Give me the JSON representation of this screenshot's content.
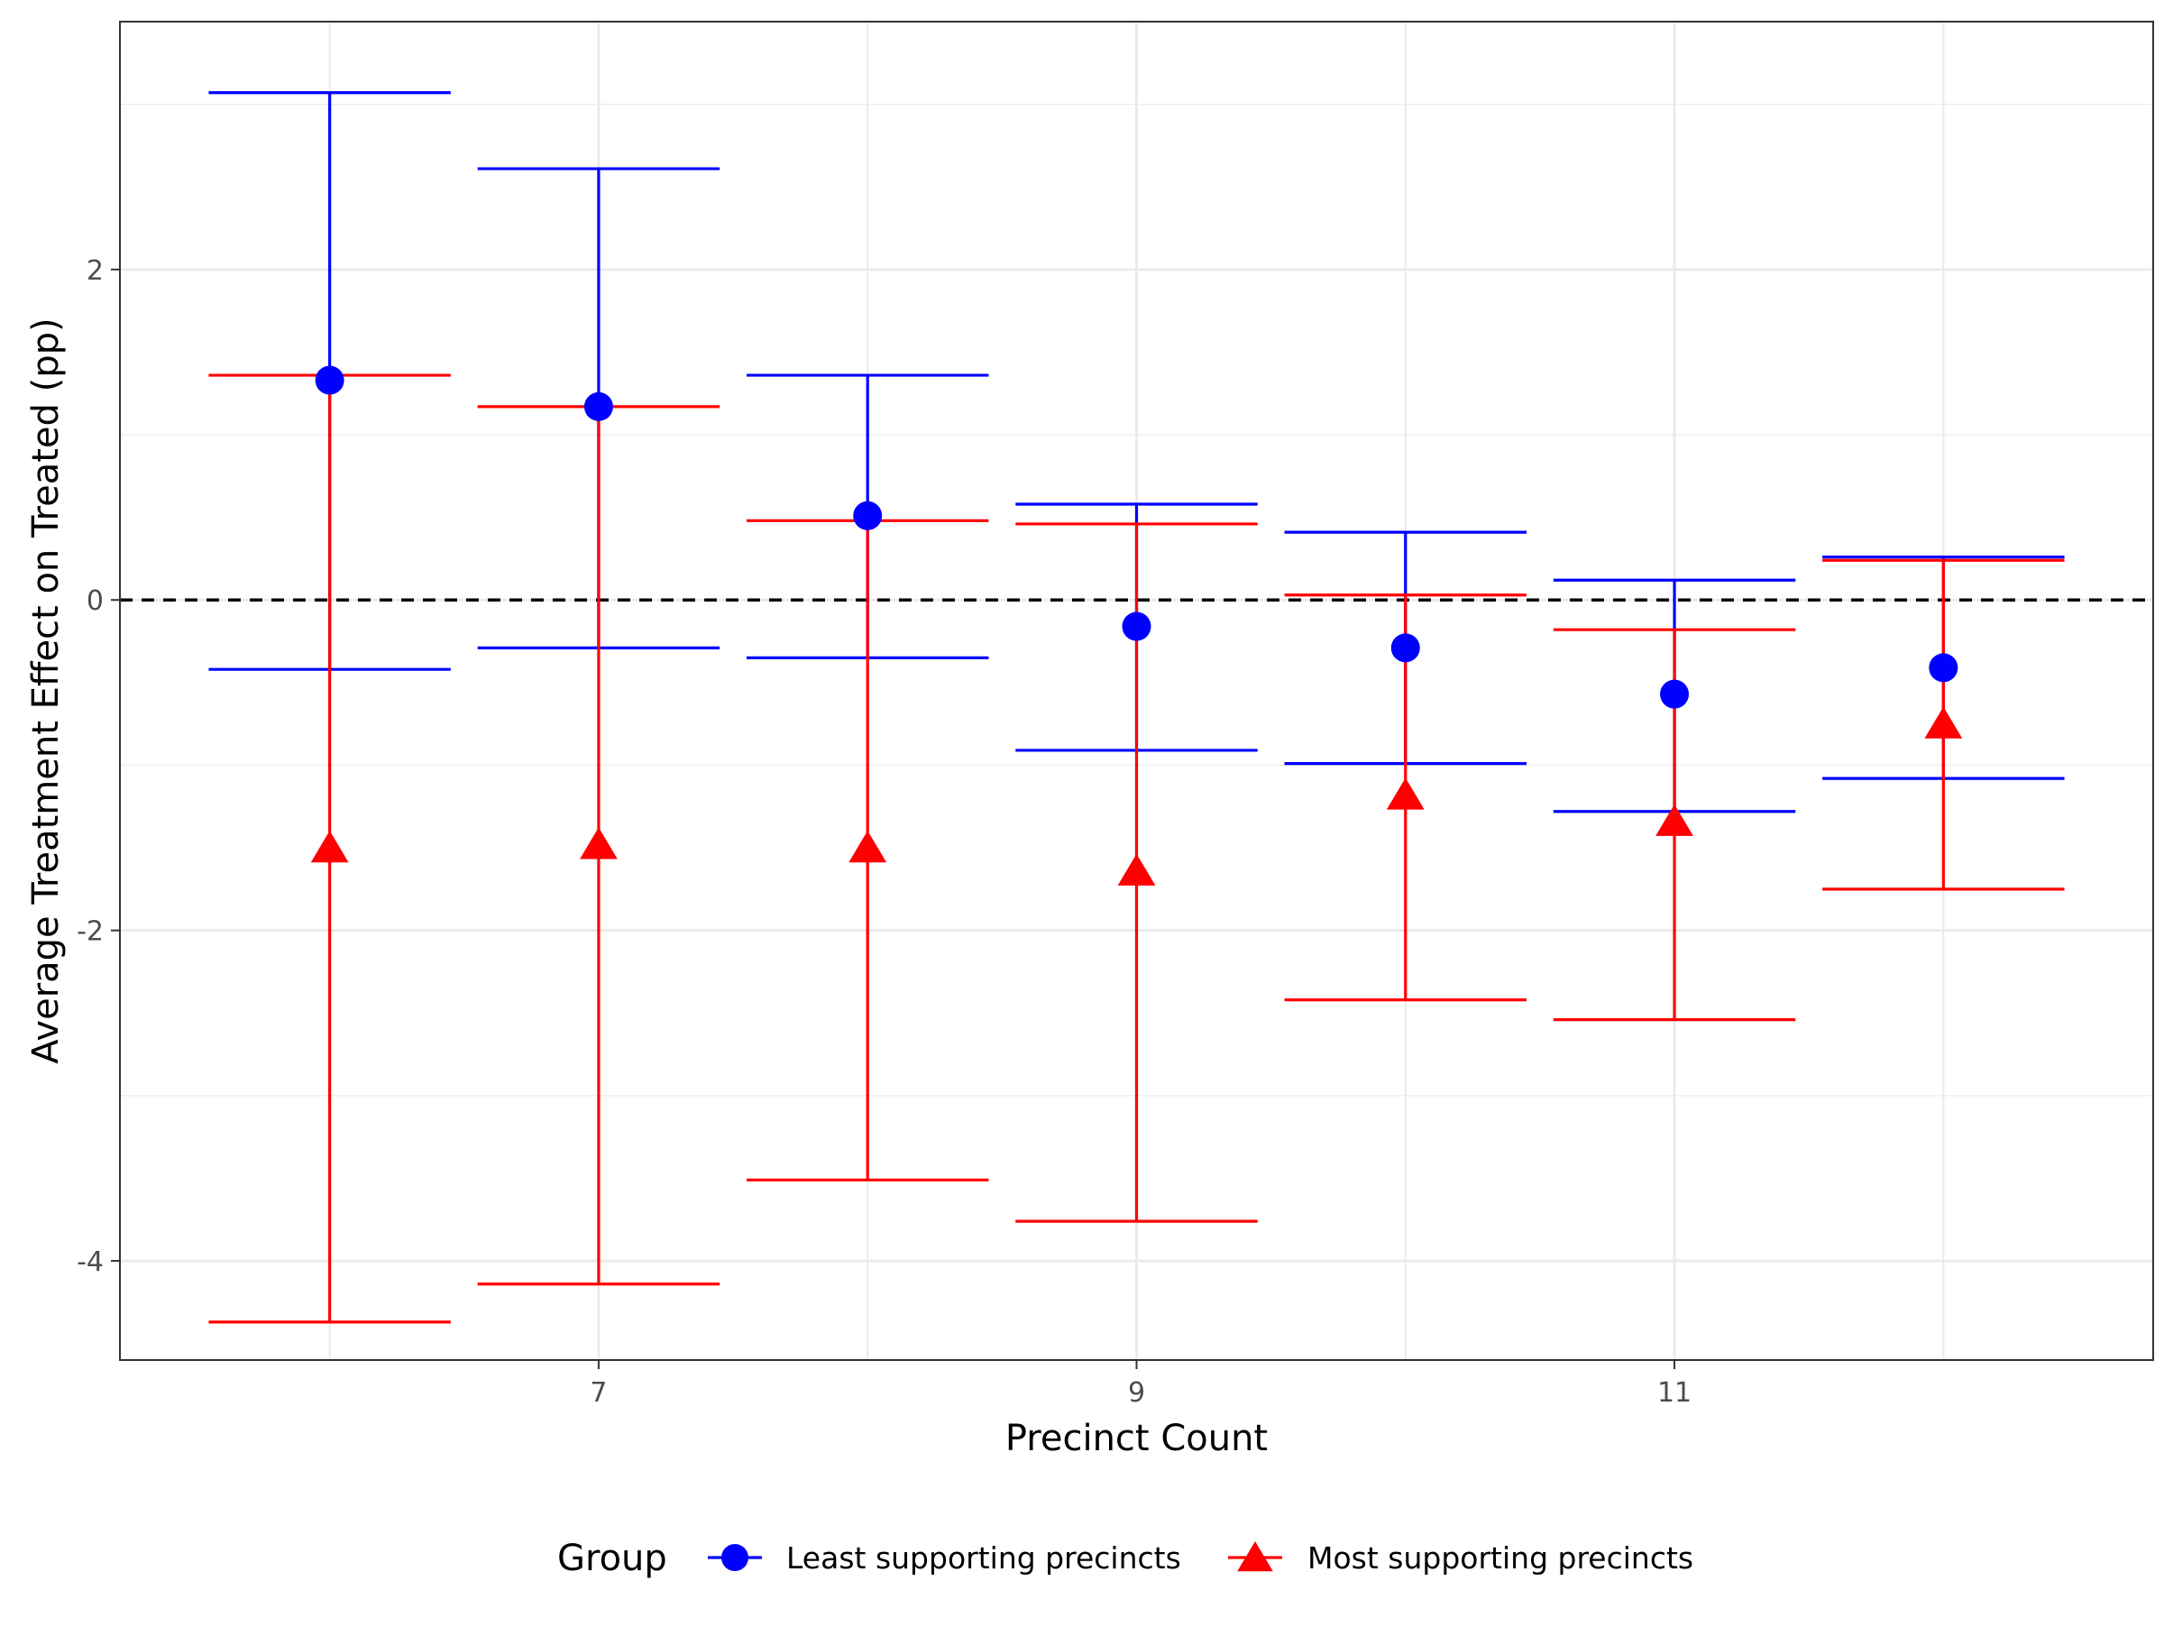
{
  "chart_data": {
    "type": "errorbar",
    "xlabel": "Precinct Count",
    "ylabel": "Average Treatment Effect on Treated (pp)",
    "x_ticks": [
      7,
      9,
      11
    ],
    "y_ticks": [
      -4,
      -2,
      0,
      2
    ],
    "xlim": [
      5.22,
      12.78
    ],
    "ylim": [
      -4.6,
      3.5
    ],
    "grid": true,
    "reference_line": {
      "y": 0,
      "style": "dashed",
      "color": "#000000"
    },
    "legend": {
      "title": "Group",
      "position": "bottom"
    },
    "series": [
      {
        "name": "Least supporting precincts",
        "color": "#0000ff",
        "marker": "circle",
        "x": [
          6,
          7,
          8,
          9,
          10,
          11,
          12
        ],
        "y": [
          1.33,
          1.17,
          0.51,
          -0.16,
          -0.29,
          -0.57,
          -0.41
        ],
        "lower": [
          -0.42,
          -0.29,
          -0.35,
          -0.91,
          -0.99,
          -1.28,
          -1.08
        ],
        "upper": [
          3.07,
          2.61,
          1.36,
          0.58,
          0.41,
          0.12,
          0.26
        ]
      },
      {
        "name": "Most supporting precincts",
        "color": "#ff0000",
        "marker": "triangle",
        "x": [
          6,
          7,
          8,
          9,
          10,
          11,
          12
        ],
        "y": [
          -1.5,
          -1.48,
          -1.5,
          -1.64,
          -1.18,
          -1.34,
          -0.75
        ],
        "lower": [
          -4.37,
          -4.14,
          -3.51,
          -3.76,
          -2.42,
          -2.54,
          -1.75
        ],
        "upper": [
          1.36,
          1.17,
          0.48,
          0.46,
          0.03,
          -0.18,
          0.24
        ]
      }
    ]
  }
}
